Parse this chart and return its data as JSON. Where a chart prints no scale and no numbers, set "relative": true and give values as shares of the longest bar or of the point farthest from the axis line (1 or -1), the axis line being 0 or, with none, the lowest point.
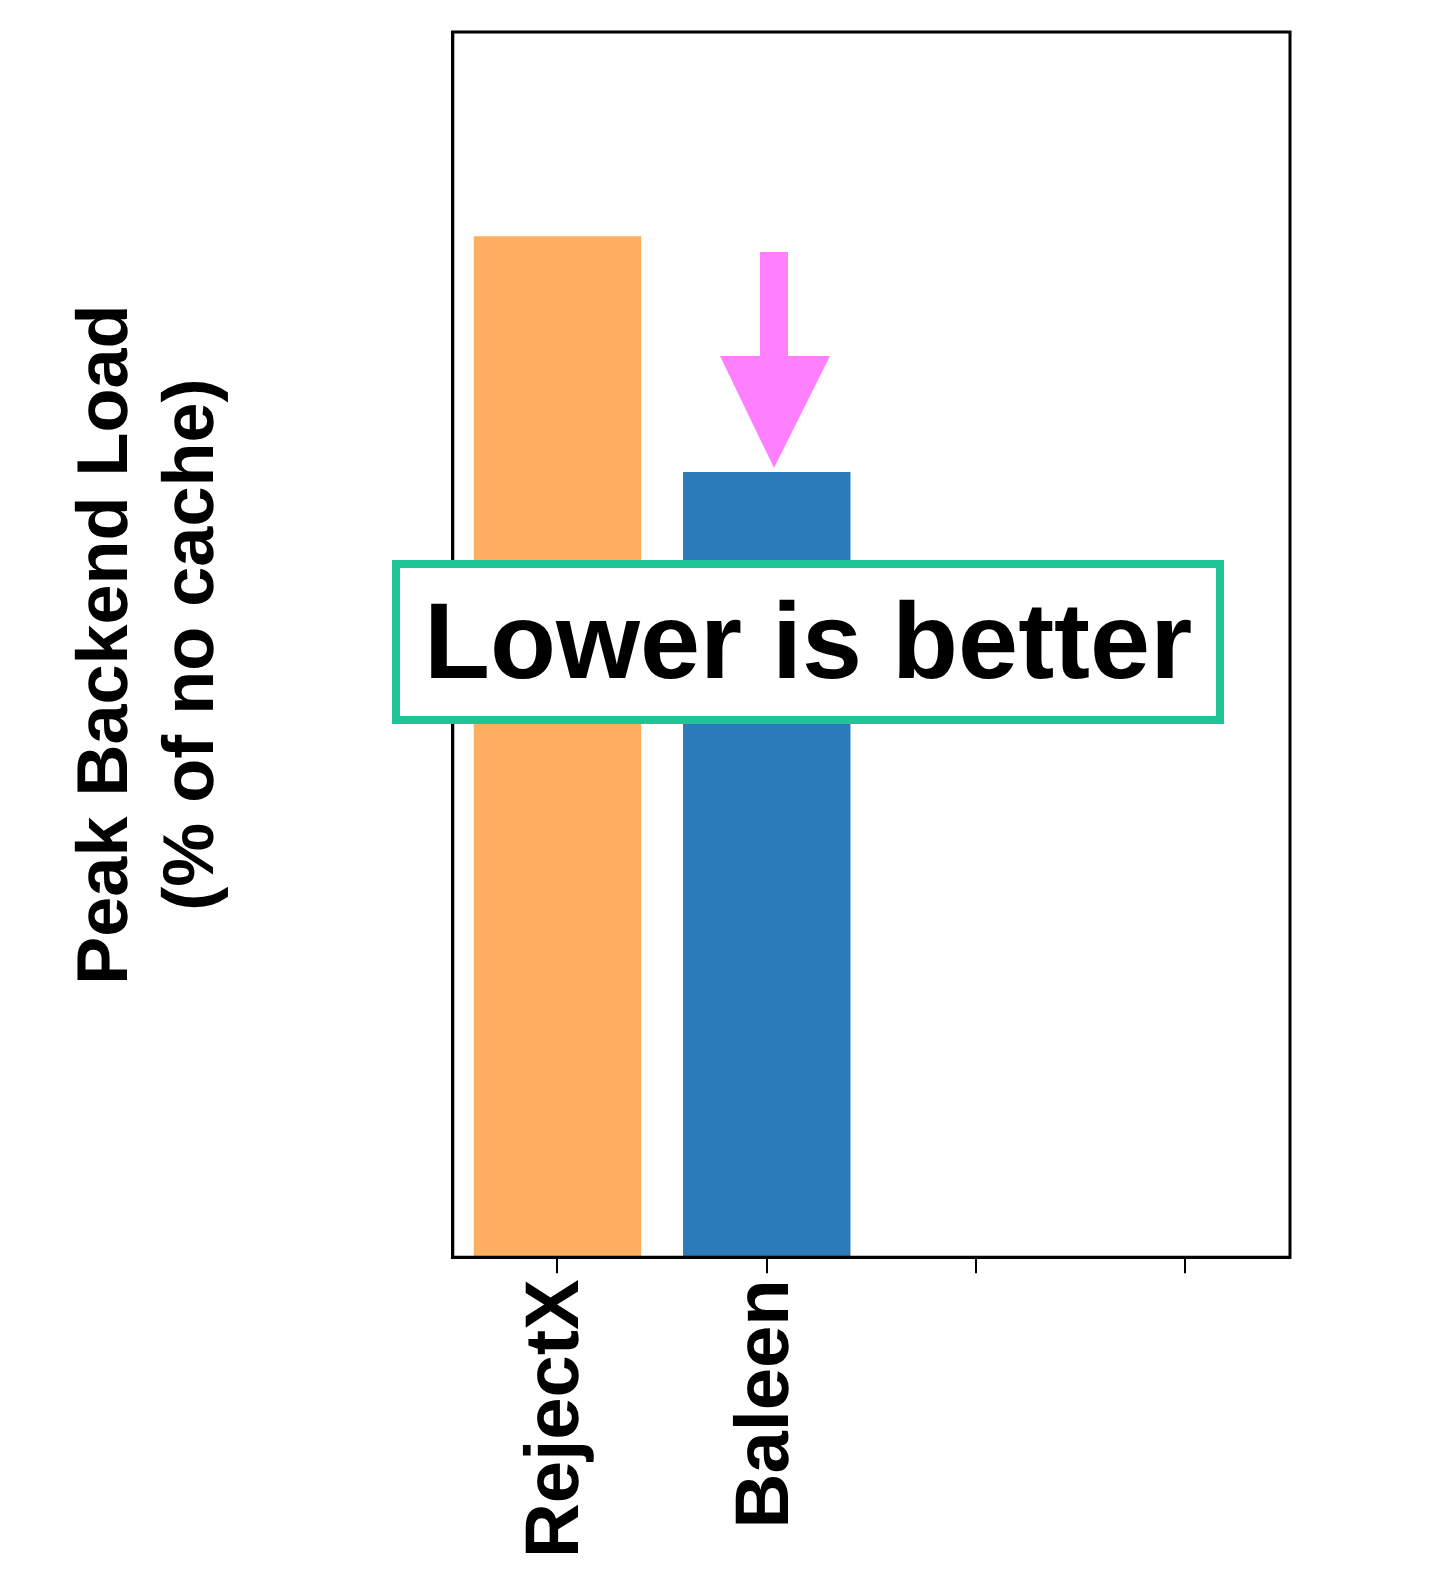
{
  "chart_data": {
    "type": "bar",
    "ylabel": "Peak Backend Load\n(% of no cache)",
    "categories": [
      "RejectX",
      "Baleen",
      null,
      null
    ],
    "colors": [
      "#fdae61",
      "#2b7bba",
      null,
      null
    ],
    "values": [
      1,
      0.769,
      null,
      null
    ],
    "relative": true,
    "grid": false,
    "legend": false,
    "annotations": [
      "Lower is better"
    ]
  }
}
